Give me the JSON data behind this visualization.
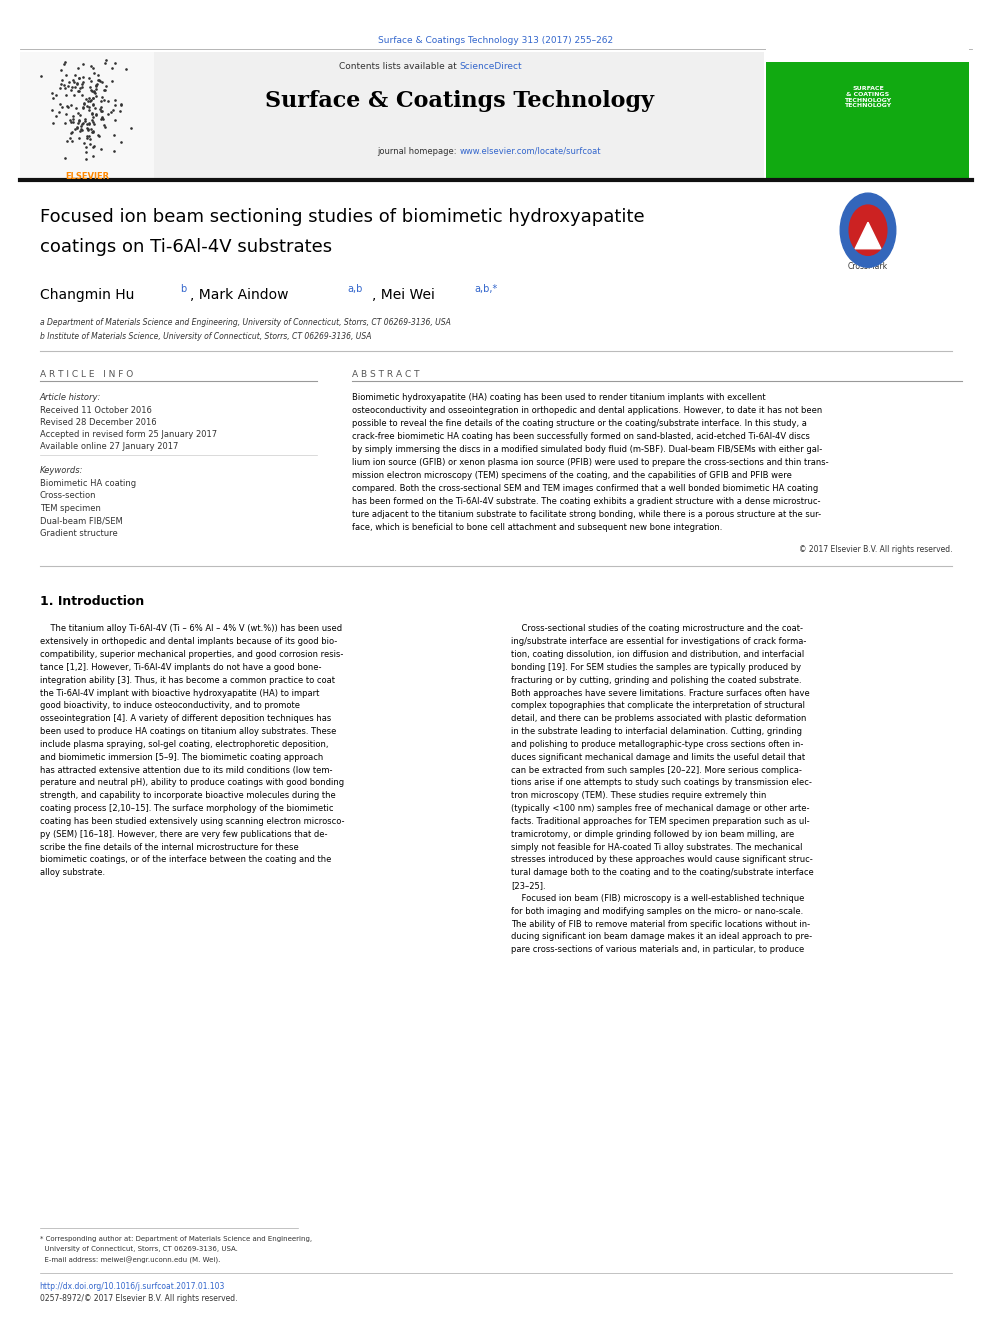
{
  "page_width": 9.92,
  "page_height": 13.23,
  "background_color": "#ffffff",
  "top_journal_ref": "Surface & Coatings Technology 313 (2017) 255–262",
  "top_journal_ref_color": "#3366cc",
  "journal_header_bg": "#f0f0f0",
  "sciencedirect_color": "#3366cc",
  "journal_name": "Surface & Coatings Technology",
  "journal_homepage_url_color": "#3366cc",
  "article_title_line1": "Focused ion beam sectioning studies of biomimetic hydroxyapatite",
  "article_title_line2": "coatings on Ti-6Al-4V substrates",
  "affil_a": "a Department of Materials Science and Engineering, University of Connecticut, Storrs, CT 06269-3136, USA",
  "affil_b": "b Institute of Materials Science, University of Connecticut, Storrs, CT 06269-3136, USA",
  "article_info_title": "A R T I C L E   I N F O",
  "abstract_title": "A B S T R A C T",
  "article_history_label": "Article history:",
  "received": "Received 11 October 2016",
  "revised": "Revised 28 December 2016",
  "accepted": "Accepted in revised form 25 January 2017",
  "available": "Available online 27 January 2017",
  "keywords_label": "Keywords:",
  "keywords": [
    "Biomimetic HA coating",
    "Cross-section",
    "TEM specimen",
    "Dual-beam FIB/SEM",
    "Gradient structure"
  ],
  "copyright": "© 2017 Elsevier B.V. All rights reserved.",
  "intro_title": "1. Introduction",
  "footer_doi": "http://dx.doi.org/10.1016/j.surfcoat.2017.01.103",
  "footer_issn": "0257-8972/© 2017 Elsevier B.V. All rights reserved.",
  "doi_color": "#3366cc",
  "link_color": "#3366cc",
  "text_color": "#000000",
  "gray_text": "#555555",
  "abstract_lines": [
    "Biomimetic hydroxyapatite (HA) coating has been used to render titanium implants with excellent",
    "osteoconductivity and osseointegration in orthopedic and dental applications. However, to date it has not been",
    "possible to reveal the fine details of the coating structure or the coating/substrate interface. In this study, a",
    "crack-free biomimetic HA coating has been successfully formed on sand-blasted, acid-etched Ti-6Al-4V discs",
    "by simply immersing the discs in a modified simulated body fluid (m-SBF). Dual-beam FIB/SEMs with either gal-",
    "lium ion source (GFIB) or xenon plasma ion source (PFIB) were used to prepare the cross-sections and thin trans-",
    "mission electron microscopy (TEM) specimens of the coating, and the capabilities of GFIB and PFIB were",
    "compared. Both the cross-sectional SEM and TEM images confirmed that a well bonded biomimetic HA coating",
    "has been formed on the Ti-6Al-4V substrate. The coating exhibits a gradient structure with a dense microstruc-",
    "ture adjacent to the titanium substrate to facilitate strong bonding, while there is a porous structure at the sur-",
    "face, which is beneficial to bone cell attachment and subsequent new bone integration."
  ],
  "intro_left_lines": [
    "    The titanium alloy Ti-6Al-4V (Ti – 6% Al – 4% V (wt.%)) has been used",
    "extensively in orthopedic and dental implants because of its good bio-",
    "compatibility, superior mechanical properties, and good corrosion resis-",
    "tance [1,2]. However, Ti-6Al-4V implants do not have a good bone-",
    "integration ability [3]. Thus, it has become a common practice to coat",
    "the Ti-6Al-4V implant with bioactive hydroxyapatite (HA) to impart",
    "good bioactivity, to induce osteoconductivity, and to promote",
    "osseointegration [4]. A variety of different deposition techniques has",
    "been used to produce HA coatings on titanium alloy substrates. These",
    "include plasma spraying, sol-gel coating, electrophoretic deposition,",
    "and biomimetic immersion [5–9]. The biomimetic coating approach",
    "has attracted extensive attention due to its mild conditions (low tem-",
    "perature and neutral pH), ability to produce coatings with good bonding",
    "strength, and capability to incorporate bioactive molecules during the",
    "coating process [2,10–15]. The surface morphology of the biomimetic",
    "coating has been studied extensively using scanning electron microsco-",
    "py (SEM) [16–18]. However, there are very few publications that de-",
    "scribe the fine details of the internal microstructure for these",
    "biomimetic coatings, or of the interface between the coating and the",
    "alloy substrate."
  ],
  "intro_right_lines": [
    "    Cross-sectional studies of the coating microstructure and the coat-",
    "ing/substrate interface are essential for investigations of crack forma-",
    "tion, coating dissolution, ion diffusion and distribution, and interfacial",
    "bonding [19]. For SEM studies the samples are typically produced by",
    "fracturing or by cutting, grinding and polishing the coated substrate.",
    "Both approaches have severe limitations. Fracture surfaces often have",
    "complex topographies that complicate the interpretation of structural",
    "detail, and there can be problems associated with plastic deformation",
    "in the substrate leading to interfacial delamination. Cutting, grinding",
    "and polishing to produce metallographic-type cross sections often in-",
    "duces significant mechanical damage and limits the useful detail that",
    "can be extracted from such samples [20–22]. More serious complica-",
    "tions arise if one attempts to study such coatings by transmission elec-",
    "tron microscopy (TEM). These studies require extremely thin",
    "(typically <100 nm) samples free of mechanical damage or other arte-",
    "facts. Traditional approaches for TEM specimen preparation such as ul-",
    "tramicrotomy, or dimple grinding followed by ion beam milling, are",
    "simply not feasible for HA-coated Ti alloy substrates. The mechanical",
    "stresses introduced by these approaches would cause significant struc-",
    "tural damage both to the coating and to the coating/substrate interface",
    "[23–25].",
    "    Focused ion beam (FIB) microscopy is a well-established technique",
    "for both imaging and modifying samples on the micro- or nano-scale.",
    "The ability of FIB to remove material from specific locations without in-",
    "ducing significant ion beam damage makes it an ideal approach to pre-",
    "pare cross-sections of various materials and, in particular, to produce"
  ],
  "footnote_line1": "* Corresponding author at: Department of Materials Science and Engineering,",
  "footnote_line2": "  University of Connecticut, Storrs, CT 06269-3136, USA.",
  "footnote_line3": "  E-mail address: meiwei@engr.uconn.edu (M. Wei)."
}
